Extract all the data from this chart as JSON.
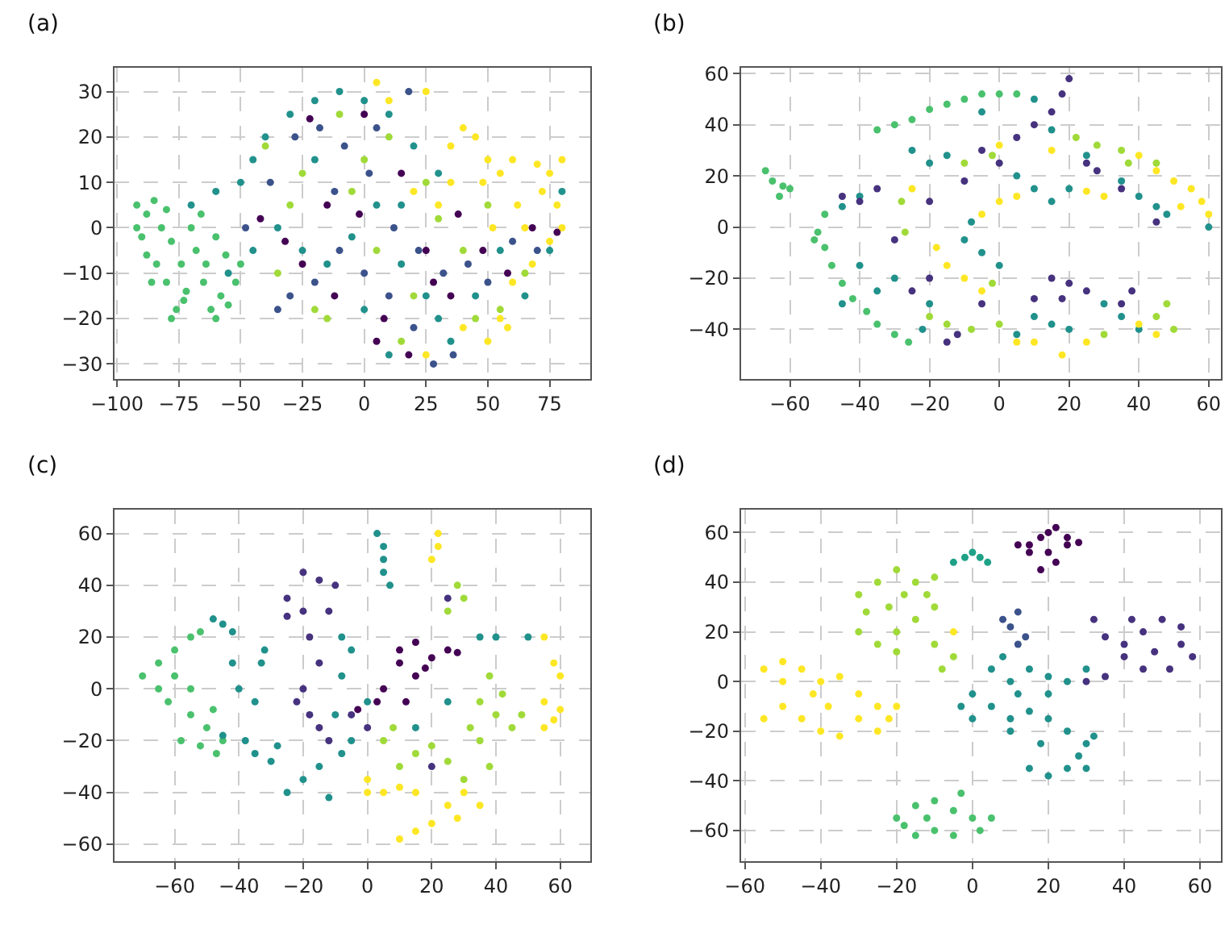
{
  "chart_data": [
    {
      "type": "scatter",
      "title": "(a)",
      "xlim": [
        -101,
        91.5
      ],
      "ylim": [
        -33.3,
        35.2
      ],
      "xticks": [
        -100,
        -75,
        -50,
        -25,
        0,
        25,
        50,
        75
      ],
      "yticks": [
        -30,
        -20,
        -10,
        0,
        10,
        20,
        30
      ],
      "grid": true,
      "marker": "circle",
      "series": [
        {
          "color": "#4ac16d",
          "x": [
            -92,
            -88,
            -90,
            -85,
            -80,
            -78,
            -84,
            -88,
            -80,
            -76,
            -78,
            -72,
            -74,
            -70,
            -68,
            -65,
            -62,
            -60,
            -58,
            -55,
            -52,
            -56,
            -60,
            -64,
            -82,
            -92,
            -86,
            -73,
            -66,
            -50
          ],
          "values": [
            5,
            3,
            -2,
            6,
            4,
            -3,
            -8,
            -6,
            -12,
            -18,
            -20,
            -14,
            -8,
            0,
            -5,
            -12,
            -18,
            -20,
            -15,
            -17,
            -12,
            -6,
            -2,
            -8,
            0,
            0,
            -12,
            -16,
            3,
            -8
          ]
        },
        {
          "color": "#a0da39",
          "x": [
            -40,
            -30,
            -15,
            -20,
            5,
            10,
            -5,
            20,
            40,
            30,
            -35,
            15,
            55,
            65,
            0,
            -10,
            25,
            45,
            -25,
            50
          ],
          "values": [
            18,
            5,
            -20,
            -18,
            -5,
            20,
            8,
            -15,
            -5,
            2,
            -10,
            -25,
            -18,
            -10,
            15,
            25,
            10,
            -20,
            12,
            5
          ]
        },
        {
          "color": "#fde725",
          "x": [
            40,
            45,
            35,
            50,
            48,
            55,
            60,
            70,
            75,
            80,
            78,
            72,
            65,
            75,
            68,
            60,
            55,
            50,
            25,
            30,
            20,
            10,
            25,
            5,
            40,
            80,
            62,
            52,
            35,
            58
          ],
          "values": [
            22,
            20,
            18,
            15,
            10,
            12,
            15,
            14,
            12,
            15,
            5,
            8,
            0,
            -3,
            -8,
            -12,
            -20,
            -25,
            -28,
            5,
            8,
            28,
            30,
            32,
            -22,
            0,
            5,
            0,
            10,
            -22
          ]
        },
        {
          "color": "#21918c",
          "x": [
            -70,
            -60,
            -50,
            -45,
            -40,
            -30,
            -20,
            -10,
            0,
            10,
            20,
            30,
            -35,
            -25,
            -15,
            -5,
            5,
            15,
            25,
            35,
            45,
            55,
            65,
            75,
            80,
            -55,
            -45,
            0,
            30,
            10,
            -20,
            15
          ],
          "values": [
            5,
            8,
            10,
            15,
            20,
            25,
            28,
            30,
            28,
            25,
            18,
            12,
            0,
            -5,
            -8,
            -2,
            5,
            -8,
            -15,
            -25,
            -15,
            -5,
            -15,
            -5,
            8,
            -10,
            -5,
            -18,
            -20,
            -28,
            15,
            5
          ]
        },
        {
          "color": "#3b528b",
          "x": [
            -48,
            -38,
            -28,
            -18,
            -8,
            2,
            12,
            22,
            32,
            42,
            -30,
            -20,
            -10,
            0,
            10,
            20,
            28,
            36,
            50,
            60,
            70,
            -12,
            5,
            18,
            -35
          ],
          "values": [
            0,
            10,
            20,
            22,
            18,
            12,
            0,
            -5,
            -10,
            -8,
            -15,
            -12,
            -5,
            -10,
            -15,
            -22,
            -30,
            -28,
            -12,
            -3,
            -5,
            8,
            22,
            30,
            -18
          ]
        },
        {
          "color": "#440154",
          "x": [
            -42,
            -32,
            -22,
            -12,
            -2,
            8,
            18,
            28,
            38,
            48,
            58,
            68,
            78,
            -15,
            5,
            15,
            25,
            0,
            -25,
            35
          ],
          "values": [
            2,
            -3,
            24,
            -15,
            3,
            -20,
            -28,
            -12,
            3,
            -5,
            -10,
            0,
            -1,
            5,
            -25,
            12,
            -5,
            25,
            -8,
            -15
          ]
        }
      ]
    },
    {
      "type": "scatter",
      "title": "(b)",
      "xlim": [
        -74,
        63.4
      ],
      "ylim": [
        -59.4,
        62.2
      ],
      "xticks": [
        -60,
        -40,
        -20,
        0,
        20,
        40,
        60
      ],
      "yticks": [
        -40,
        -20,
        0,
        20,
        40,
        60
      ],
      "grid": true,
      "marker": "circle",
      "series": [
        {
          "color": "#4ac16d",
          "x": [
            -67,
            -65,
            -63,
            -62,
            -60,
            -35,
            -30,
            -25,
            -20,
            -15,
            -10,
            -5,
            0,
            5,
            -52,
            -50,
            -48,
            -45,
            -42,
            -38,
            -35,
            -30,
            -26,
            -50,
            -53
          ],
          "values": [
            22,
            18,
            12,
            16,
            15,
            38,
            40,
            42,
            46,
            48,
            50,
            52,
            52,
            52,
            -2,
            -8,
            -15,
            -22,
            -28,
            -33,
            -38,
            -42,
            -45,
            5,
            -5
          ]
        },
        {
          "color": "#21918c",
          "x": [
            -40,
            -45,
            -25,
            -20,
            -15,
            -30,
            -35,
            -40,
            -22,
            -10,
            -5,
            -8,
            5,
            10,
            15,
            20,
            25,
            35,
            40,
            45,
            48,
            60,
            10,
            15,
            20,
            30,
            35,
            40,
            -20,
            0,
            -5,
            10,
            15,
            -45,
            5
          ],
          "values": [
            12,
            8,
            30,
            25,
            28,
            -20,
            -25,
            -15,
            -40,
            -5,
            -10,
            2,
            20,
            15,
            10,
            15,
            28,
            18,
            12,
            8,
            5,
            0,
            -35,
            -38,
            -40,
            -30,
            -35,
            -40,
            -30,
            -15,
            45,
            50,
            38,
            -30,
            -42
          ]
        },
        {
          "color": "#a0da39",
          "x": [
            22,
            28,
            35,
            37,
            -10,
            -2,
            -20,
            -15,
            -8,
            0,
            45,
            48,
            30,
            -27,
            -28,
            45,
            -2,
            50
          ],
          "values": [
            35,
            32,
            30,
            25,
            25,
            28,
            -35,
            -38,
            -40,
            -38,
            -35,
            -30,
            -42,
            -2,
            10,
            25,
            -22,
            -40
          ]
        },
        {
          "color": "#fde725",
          "x": [
            50,
            55,
            58,
            52,
            60,
            45,
            40,
            30,
            25,
            5,
            0,
            -10,
            -15,
            -5,
            -18,
            5,
            10,
            18,
            25,
            40,
            45,
            -5,
            -25,
            15,
            0
          ],
          "values": [
            18,
            15,
            10,
            8,
            5,
            22,
            28,
            12,
            14,
            12,
            10,
            -20,
            -15,
            -25,
            -8,
            -45,
            -45,
            -50,
            -45,
            -38,
            -42,
            5,
            15,
            30,
            32
          ]
        },
        {
          "color": "#46327e",
          "x": [
            20,
            18,
            15,
            10,
            5,
            -5,
            0,
            -20,
            -35,
            -40,
            -30,
            -25,
            -20,
            -15,
            -12,
            15,
            20,
            25,
            18,
            10,
            38,
            35,
            25,
            28,
            35,
            45,
            -10,
            -45,
            -5
          ],
          "values": [
            58,
            52,
            45,
            40,
            35,
            30,
            25,
            10,
            15,
            10,
            -5,
            -25,
            -20,
            -45,
            -42,
            -20,
            -22,
            -25,
            -28,
            -28,
            -25,
            -30,
            25,
            22,
            15,
            2,
            18,
            12,
            -30
          ]
        }
      ]
    },
    {
      "type": "scatter",
      "title": "(c)",
      "xlim": [
        -78.7,
        69.4
      ],
      "ylim": [
        -66.6,
        69.2
      ],
      "xticks": [
        -60,
        -40,
        -20,
        0,
        20,
        40,
        60
      ],
      "yticks": [
        -60,
        -40,
        -20,
        0,
        20,
        40,
        60
      ],
      "grid": true,
      "marker": "circle",
      "series": [
        {
          "color": "#4ac16d",
          "x": [
            -70,
            -65,
            -60,
            -55,
            -52,
            -62,
            -65,
            -60,
            -55,
            -50,
            -58,
            -52,
            -47,
            -45,
            -48,
            -55
          ],
          "values": [
            5,
            10,
            15,
            20,
            22,
            -5,
            0,
            5,
            -10,
            -15,
            -20,
            -22,
            -25,
            -20,
            -8,
            0
          ]
        },
        {
          "color": "#21918c",
          "x": [
            -48,
            -45,
            -42,
            -42,
            -40,
            -38,
            -35,
            -30,
            -33,
            -35,
            -32,
            -28,
            -25,
            -20,
            -15,
            -12,
            -8,
            -5,
            -10,
            -8,
            -5,
            -8,
            3,
            5,
            5,
            7,
            5,
            35,
            40,
            50,
            0,
            15,
            25,
            -45
          ],
          "values": [
            27,
            25,
            22,
            10,
            0,
            -20,
            -25,
            -28,
            10,
            -5,
            15,
            -22,
            -40,
            -35,
            -30,
            -42,
            -25,
            -20,
            -10,
            5,
            15,
            20,
            60,
            55,
            50,
            40,
            45,
            20,
            20,
            20,
            -5,
            -15,
            -5,
            -18
          ]
        },
        {
          "color": "#46327e",
          "x": [
            -25,
            -20,
            -15,
            -20,
            -18,
            -15,
            -20,
            -18,
            -15,
            -22,
            -12,
            -10,
            -25,
            -5,
            0,
            20,
            25,
            -12
          ],
          "values": [
            35,
            45,
            42,
            30,
            20,
            10,
            0,
            -10,
            -15,
            -5,
            -20,
            40,
            28,
            -10,
            -15,
            -30,
            35,
            30
          ]
        },
        {
          "color": "#440154",
          "x": [
            10,
            15,
            20,
            25,
            28,
            10,
            15,
            5,
            3,
            18,
            12,
            -3
          ],
          "values": [
            15,
            18,
            12,
            15,
            14,
            10,
            5,
            0,
            -5,
            8,
            -5,
            -8
          ]
        },
        {
          "color": "#a0da39",
          "x": [
            28,
            30,
            25,
            35,
            40,
            45,
            38,
            42,
            5,
            8,
            15,
            20,
            25,
            35,
            38,
            30,
            10,
            48,
            32
          ],
          "values": [
            40,
            35,
            30,
            -5,
            -10,
            -15,
            5,
            -2,
            -20,
            -15,
            -25,
            -22,
            -28,
            -20,
            -30,
            -35,
            -30,
            -10,
            -15
          ]
        },
        {
          "color": "#fde725",
          "x": [
            22,
            22,
            20,
            55,
            58,
            60,
            55,
            58,
            55,
            60,
            0,
            5,
            10,
            15,
            30,
            35,
            28,
            20,
            10,
            15,
            0,
            25
          ],
          "values": [
            60,
            55,
            50,
            20,
            10,
            5,
            -5,
            -12,
            -15,
            -8,
            -35,
            -40,
            -38,
            -40,
            -40,
            -45,
            -50,
            -52,
            -58,
            -55,
            -40,
            -45
          ]
        }
      ]
    },
    {
      "type": "scatter",
      "title": "(d)",
      "xlim": [
        -61,
        65.4
      ],
      "ylim": [
        -72.4,
        69.2
      ],
      "xticks": [
        -60,
        -40,
        -20,
        0,
        20,
        40,
        60
      ],
      "yticks": [
        -60,
        -40,
        -20,
        0,
        20,
        40,
        60
      ],
      "grid": true,
      "marker": "circle",
      "series": [
        {
          "color": "#440154",
          "x": [
            15,
            18,
            20,
            22,
            25,
            28,
            20,
            15,
            12,
            22,
            18,
            25
          ],
          "values": [
            55,
            58,
            60,
            62,
            58,
            56,
            52,
            52,
            55,
            48,
            45,
            55
          ]
        },
        {
          "color": "#46327e",
          "x": [
            32,
            35,
            40,
            45,
            50,
            55,
            58,
            52,
            45,
            40,
            35,
            48,
            42,
            30,
            55
          ],
          "values": [
            25,
            18,
            15,
            20,
            25,
            15,
            10,
            5,
            5,
            10,
            2,
            12,
            25,
            0,
            22
          ]
        },
        {
          "color": "#3b528b",
          "x": [
            12,
            10,
            14,
            12,
            8
          ],
          "values": [
            28,
            22,
            18,
            15,
            25
          ]
        },
        {
          "color": "#21918c",
          "x": [
            0,
            5,
            10,
            15,
            20,
            25,
            30,
            5,
            10,
            15,
            20,
            0,
            -3,
            25,
            30,
            28,
            32,
            25,
            20,
            15,
            30,
            10,
            18,
            8,
            20,
            12
          ],
          "values": [
            -5,
            5,
            0,
            5,
            -5,
            0,
            5,
            -10,
            -15,
            -12,
            -15,
            -15,
            -10,
            -20,
            -25,
            -30,
            -22,
            -35,
            -38,
            -35,
            -35,
            -20,
            -25,
            10,
            2,
            -5
          ]
        },
        {
          "color": "#1fa187",
          "x": [
            -2,
            0,
            2,
            -5,
            4
          ],
          "values": [
            50,
            52,
            50,
            48,
            48
          ]
        },
        {
          "color": "#4ac16d",
          "x": [
            -20,
            -15,
            -10,
            -5,
            0,
            5,
            2,
            -5,
            -10,
            -15,
            -18,
            -12,
            -3
          ],
          "values": [
            -55,
            -50,
            -48,
            -52,
            -55,
            -55,
            -60,
            -62,
            -60,
            -62,
            -58,
            -55,
            -45
          ]
        },
        {
          "color": "#a0da39",
          "x": [
            -30,
            -25,
            -20,
            -15,
            -12,
            -10,
            -15,
            -20,
            -25,
            -30,
            -28,
            -22,
            -18,
            -10,
            -10,
            -5,
            -8,
            -20
          ],
          "values": [
            35,
            40,
            45,
            40,
            35,
            30,
            25,
            20,
            15,
            20,
            28,
            30,
            35,
            42,
            15,
            10,
            5,
            12
          ]
        },
        {
          "color": "#fde725",
          "x": [
            -55,
            -50,
            -45,
            -40,
            -35,
            -30,
            -25,
            -22,
            -25,
            -35,
            -40,
            -45,
            -50,
            -55,
            -50,
            -38,
            -30,
            -42,
            -20,
            -5
          ],
          "values": [
            5,
            8,
            5,
            0,
            2,
            -5,
            -10,
            -15,
            -20,
            -22,
            -20,
            -15,
            -10,
            -15,
            0,
            -10,
            -15,
            -5,
            -10,
            20
          ]
        }
      ]
    }
  ]
}
